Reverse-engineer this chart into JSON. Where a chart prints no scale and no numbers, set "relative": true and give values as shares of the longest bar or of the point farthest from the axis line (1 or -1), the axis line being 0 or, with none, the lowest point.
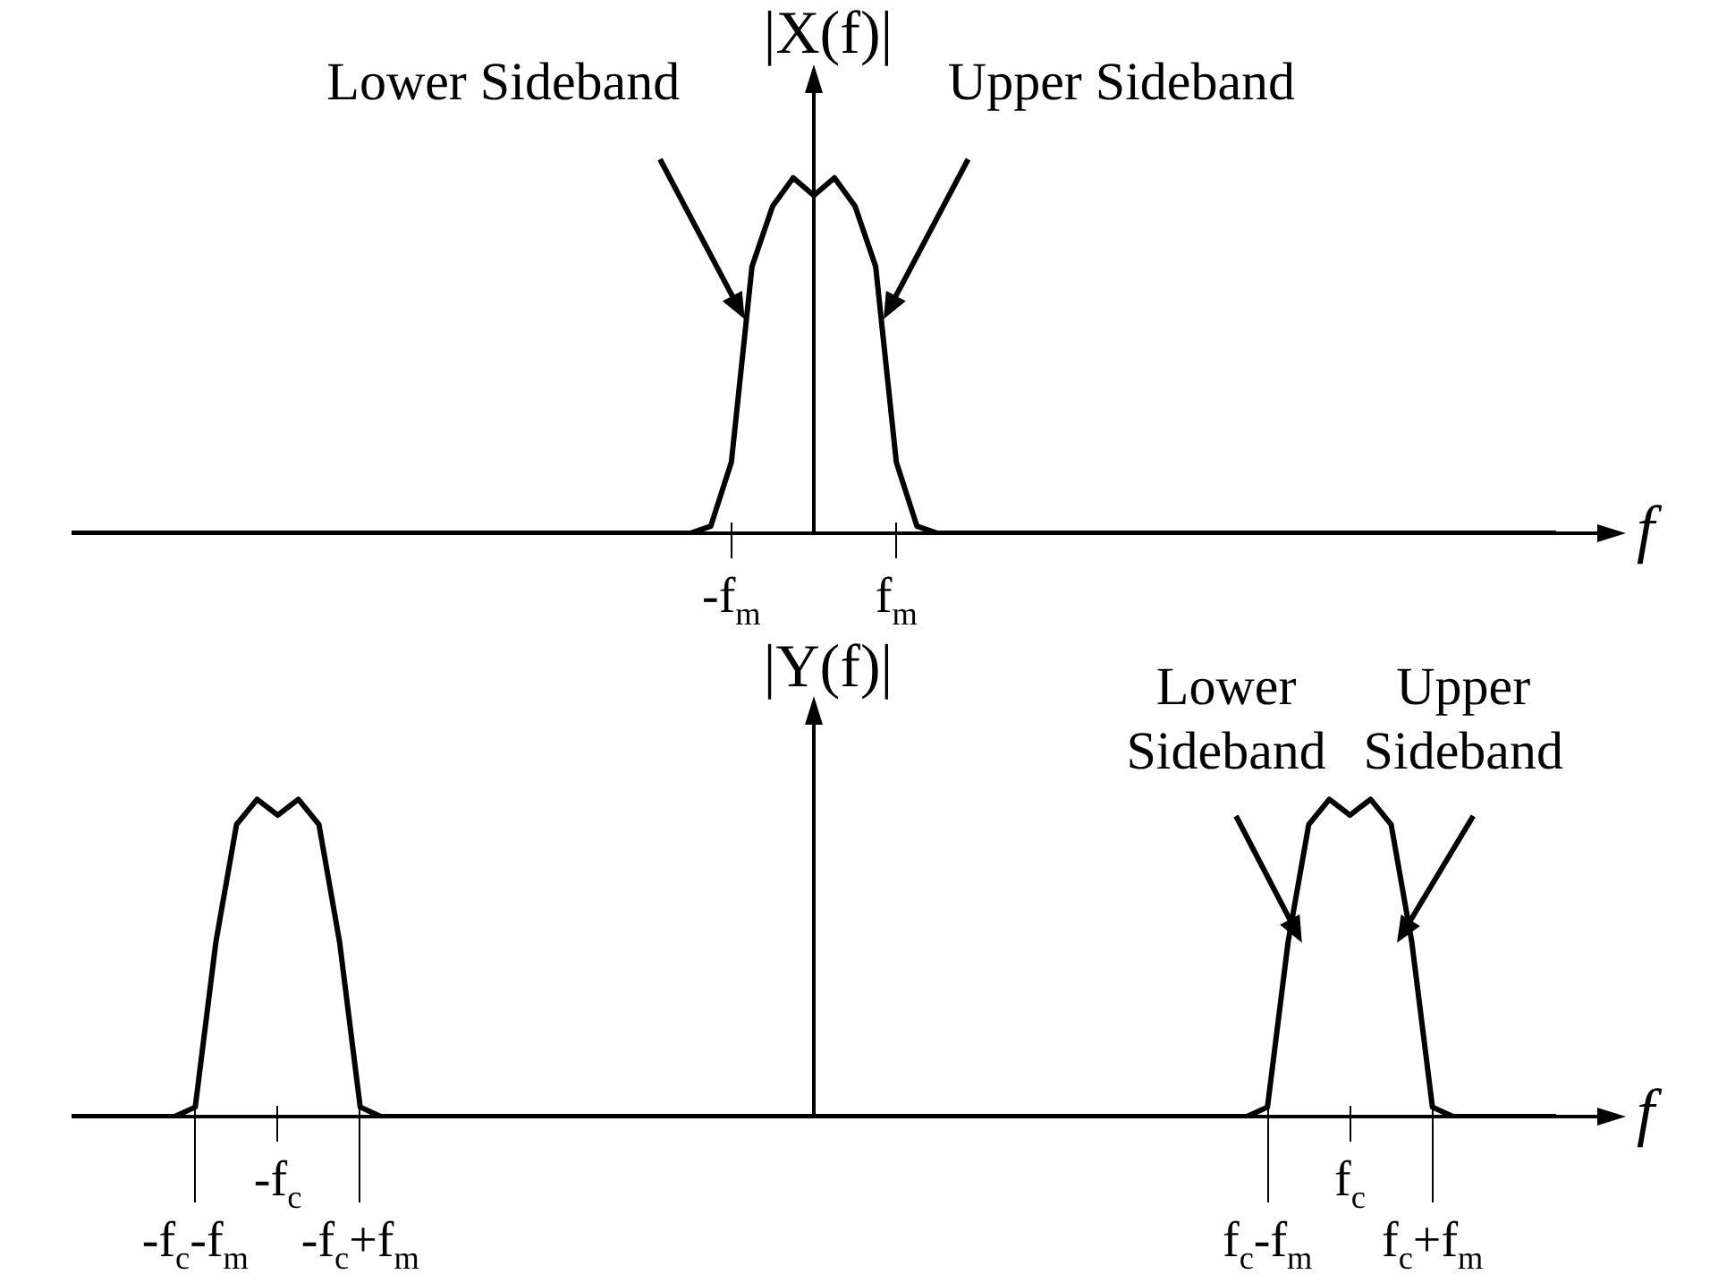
{
  "chart_data": [
    {
      "type": "line",
      "relative": true,
      "ylabel": "|X(f)|",
      "xlabel": "f",
      "categories": [
        null,
        null,
        null,
        null,
        null,
        null,
        null,
        null,
        null,
        null,
        null,
        null,
        null,
        null,
        null,
        null,
        null,
        null,
        null,
        null,
        null,
        null,
        null,
        null,
        null,
        null,
        null,
        null,
        null,
        null,
        null,
        null,
        "-f$_{m}$",
        null,
        null,
        null,
        null,
        null,
        null,
        null,
        "f$_{m}$",
        null,
        null,
        null,
        null,
        null,
        null,
        null,
        null,
        null,
        null,
        null,
        null,
        null,
        null,
        null,
        null,
        null,
        null,
        null,
        null,
        null,
        null,
        null,
        null,
        null,
        null,
        null,
        null,
        null,
        null,
        null,
        null
      ],
      "series": [
        {
          "color": "#000000",
          "values": [
            0,
            0,
            0,
            0,
            0,
            0,
            0,
            0,
            0,
            0,
            0,
            0,
            0,
            0,
            0,
            0,
            0,
            0,
            0,
            0,
            0,
            0,
            0,
            0,
            0,
            0,
            0,
            0,
            0,
            0,
            0,
            0.02,
            0.2,
            0.75,
            0.92,
            1,
            0.95,
            1,
            0.92,
            0.75,
            0.2,
            0.02,
            0,
            0,
            0,
            0,
            0,
            0,
            0,
            0,
            0,
            0,
            0,
            0,
            0,
            0,
            0,
            0,
            0,
            0,
            0,
            0,
            0,
            0,
            0,
            0,
            0,
            0,
            0,
            0,
            0,
            0,
            0
          ]
        }
      ],
      "annotations": [
        "Lower Sideband",
        "Upper Sideband"
      ]
    },
    {
      "type": "line",
      "relative": true,
      "ylabel": "|Y(f)|",
      "xlabel": "f",
      "categories": [
        null,
        null,
        null,
        null,
        null,
        null,
        "-f$_{c}$-f$_{m}$",
        null,
        null,
        null,
        "-f$_{c}$",
        null,
        null,
        null,
        "-f$_{c}$+f$_{m}$",
        null,
        null,
        null,
        null,
        null,
        null,
        null,
        null,
        null,
        null,
        null,
        null,
        null,
        null,
        null,
        null,
        null,
        null,
        null,
        null,
        null,
        null,
        null,
        null,
        null,
        null,
        null,
        null,
        null,
        null,
        null,
        null,
        null,
        null,
        null,
        null,
        null,
        null,
        null,
        null,
        null,
        null,
        null,
        "f$_{c}$-f$_{m}$",
        null,
        null,
        null,
        "f$_{c}$",
        null,
        null,
        null,
        "f$_{c}$+f$_{m}$",
        null,
        null,
        null,
        null,
        null,
        null
      ],
      "series": [
        {
          "color": "#000000",
          "values": [
            0,
            0,
            0,
            0,
            0,
            0,
            0.03,
            0.55,
            0.92,
            1,
            0.95,
            1,
            0.92,
            0.55,
            0.03,
            0,
            0,
            0,
            0,
            0,
            0,
            0,
            0,
            0,
            0,
            0,
            0,
            0,
            0,
            0,
            0,
            0,
            0,
            0,
            0,
            0,
            0,
            0,
            0,
            0,
            0,
            0,
            0,
            0,
            0,
            0,
            0,
            0,
            0,
            0,
            0,
            0,
            0,
            0,
            0,
            0,
            0,
            0,
            0.03,
            0.55,
            0.92,
            1,
            0.95,
            1,
            0.92,
            0.55,
            0.03,
            0,
            0,
            0,
            0,
            0,
            0
          ]
        }
      ],
      "annotations": [
        "Lower Sideband",
        "Upper Sideband"
      ]
    }
  ]
}
